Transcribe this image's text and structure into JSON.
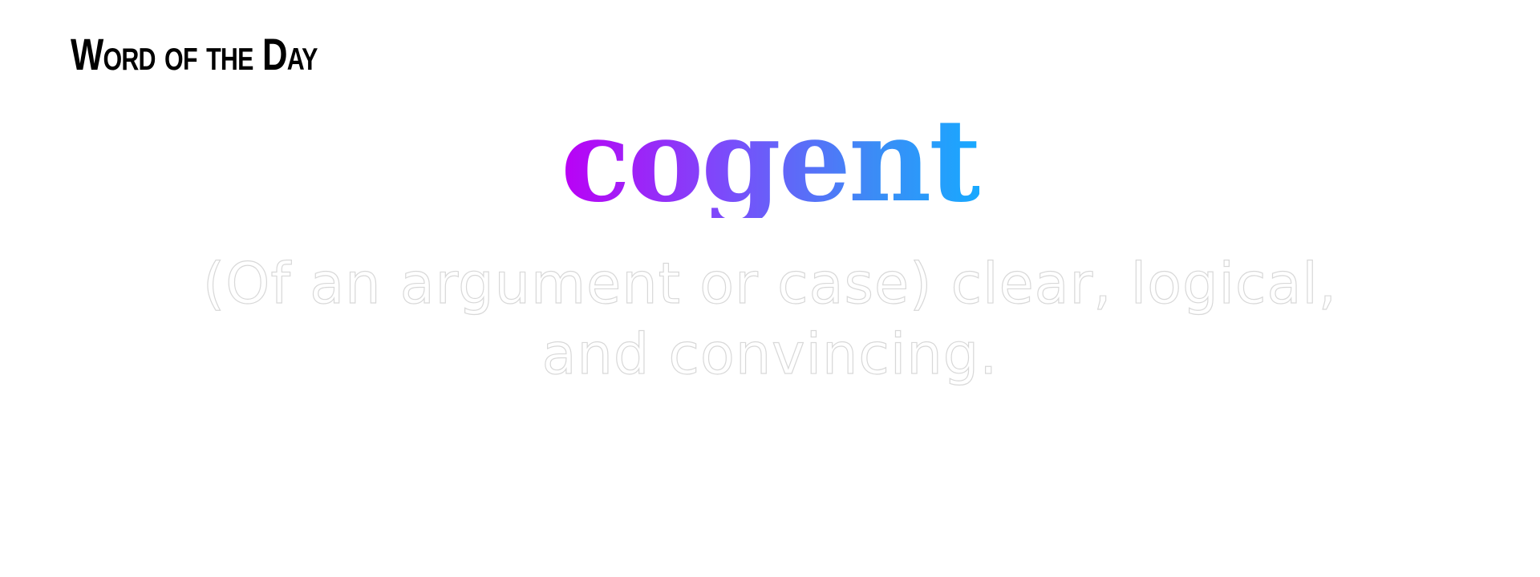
{
  "header": {
    "title": "Word of the Day"
  },
  "word": {
    "text": "cogent",
    "gradient_colors": [
      "#bb00f5",
      "#7a4dfa",
      "#3b8cf6",
      "#18a9ff"
    ]
  },
  "definition": {
    "text": "(Of an argument or case) clear, logical, and convincing."
  }
}
